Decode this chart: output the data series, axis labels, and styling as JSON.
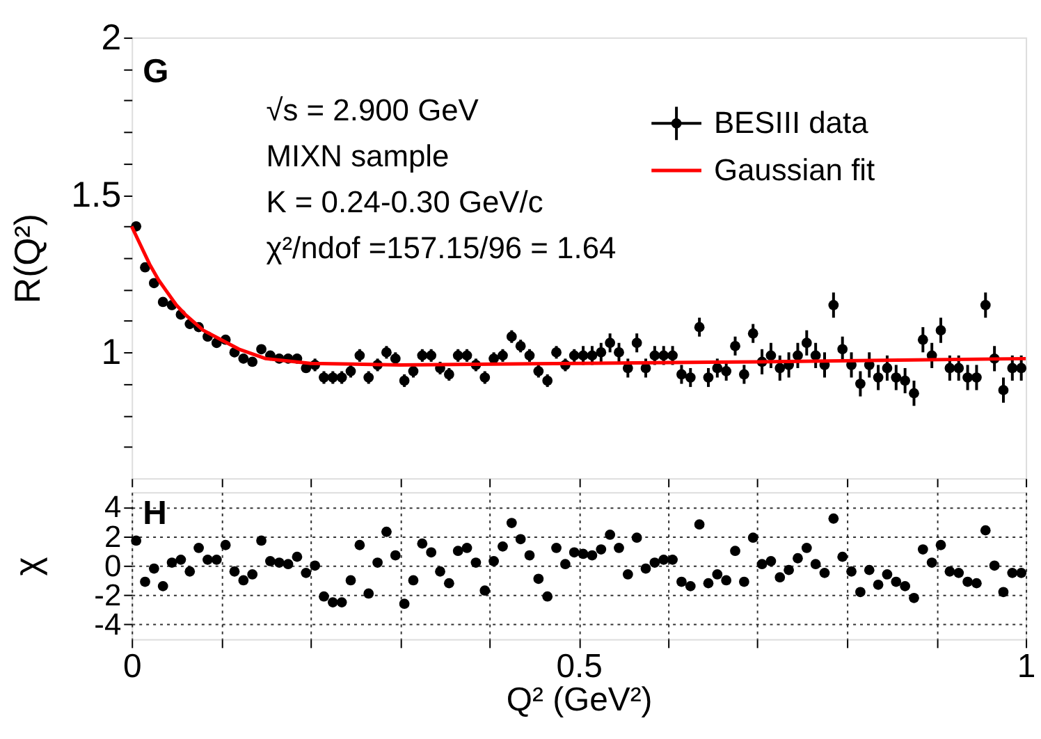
{
  "chart_data": [
    {
      "type": "scatter",
      "ylabel": "R(Q²)",
      "legend": "top right",
      "grid": false,
      "tick_labels": "y",
      "annotations": [
        "G",
        "√s = 2.900 GeV",
        "MIXN sample",
        "K = 0.24-0.30 GeV/c",
        "χ²/ndof =157.15/96 = 1.64"
      ],
      "xlim": [
        0,
        1
      ],
      "ylim": [
        0.6,
        2
      ],
      "xticks": [
        0,
        {
          "value": 0.1,
          "label": null
        },
        {
          "value": 0.2,
          "label": null
        },
        {
          "value": 0.3,
          "label": null
        },
        {
          "value": 0.4,
          "label": null
        },
        0.5,
        {
          "value": 0.6,
          "label": null
        },
        {
          "value": 0.7,
          "label": null
        },
        {
          "value": 0.8,
          "label": null
        },
        {
          "value": 0.9,
          "label": null
        },
        1
      ],
      "yticks": [
        {
          "value": 0.7,
          "label": null
        },
        {
          "value": 0.8,
          "label": null
        },
        {
          "value": 0.9,
          "label": null
        },
        1,
        {
          "value": 1.1,
          "label": null
        },
        {
          "value": 1.2,
          "label": null
        },
        {
          "value": 1.3,
          "label": null
        },
        {
          "value": 1.4,
          "label": null
        },
        1.5,
        {
          "value": 1.6,
          "label": null
        },
        {
          "value": 1.7,
          "label": null
        },
        {
          "value": 1.8,
          "label": null
        },
        {
          "value": 1.9,
          "label": null
        },
        2
      ],
      "x": [
        0.005,
        0.015,
        0.025,
        0.035,
        0.045,
        0.055,
        0.065,
        0.075,
        0.085,
        0.095,
        0.105,
        0.115,
        0.125,
        0.135,
        0.145,
        0.155,
        0.165,
        0.175,
        0.185,
        0.195,
        0.205,
        0.215,
        0.225,
        0.235,
        0.245,
        0.255,
        0.265,
        0.275,
        0.285,
        0.295,
        0.305,
        0.315,
        0.325,
        0.335,
        0.345,
        0.355,
        0.365,
        0.375,
        0.385,
        0.395,
        0.405,
        0.415,
        0.425,
        0.435,
        0.445,
        0.455,
        0.465,
        0.475,
        0.485,
        0.495,
        0.505,
        0.515,
        0.525,
        0.535,
        0.545,
        0.555,
        0.565,
        0.575,
        0.585,
        0.595,
        0.605,
        0.615,
        0.625,
        0.635,
        0.645,
        0.655,
        0.665,
        0.675,
        0.685,
        0.695,
        0.705,
        0.715,
        0.725,
        0.735,
        0.745,
        0.755,
        0.765,
        0.775,
        0.785,
        0.795,
        0.805,
        0.815,
        0.825,
        0.835,
        0.845,
        0.855,
        0.865,
        0.875,
        0.885,
        0.895,
        0.905,
        0.915,
        0.925,
        0.935,
        0.945,
        0.955,
        0.965,
        0.975,
        0.985,
        0.995
      ],
      "series": [
        {
          "name": "BESIII data",
          "type": "scatter",
          "marker": "circle",
          "color": "#000000",
          "values": [
            1.4,
            1.27,
            1.22,
            1.16,
            1.15,
            1.12,
            1.09,
            1.08,
            1.05,
            1.03,
            1.04,
            1.0,
            0.98,
            0.97,
            1.01,
            0.99,
            0.98,
            0.98,
            0.98,
            0.95,
            0.96,
            0.92,
            0.92,
            0.92,
            0.94,
            0.99,
            0.92,
            0.96,
            1.0,
            0.98,
            0.91,
            0.94,
            0.99,
            0.99,
            0.95,
            0.93,
            0.99,
            0.99,
            0.96,
            0.92,
            0.98,
            0.99,
            1.05,
            1.02,
            0.99,
            0.94,
            0.91,
            1.0,
            0.96,
            0.99,
            0.99,
            0.99,
            1.0,
            1.03,
            1.0,
            0.95,
            1.03,
            0.95,
            0.99,
            0.99,
            0.99,
            0.93,
            0.92,
            1.08,
            0.92,
            0.95,
            0.94,
            1.02,
            0.93,
            1.06,
            0.97,
            0.99,
            0.95,
            0.96,
            0.99,
            1.03,
            0.99,
            0.96,
            1.15,
            1.01,
            0.96,
            0.9,
            0.96,
            0.92,
            0.95,
            0.92,
            0.91,
            0.87,
            1.04,
            0.99,
            1.07,
            0.95,
            0.95,
            0.92,
            0.92,
            1.15,
            0.98,
            0.88,
            0.95,
            0.95
          ],
          "errors": [
            0.015,
            0.015,
            0.015,
            0.015,
            0.015,
            0.015,
            0.015,
            0.015,
            0.015,
            0.015,
            0.015,
            0.015,
            0.015,
            0.015,
            0.015,
            0.015,
            0.015,
            0.015,
            0.015,
            0.015,
            0.02,
            0.02,
            0.02,
            0.02,
            0.02,
            0.02,
            0.02,
            0.02,
            0.02,
            0.02,
            0.02,
            0.02,
            0.02,
            0.02,
            0.02,
            0.02,
            0.02,
            0.02,
            0.02,
            0.02,
            0.02,
            0.02,
            0.02,
            0.02,
            0.02,
            0.02,
            0.02,
            0.02,
            0.02,
            0.02,
            0.03,
            0.03,
            0.03,
            0.03,
            0.03,
            0.03,
            0.03,
            0.03,
            0.03,
            0.03,
            0.03,
            0.03,
            0.03,
            0.03,
            0.03,
            0.03,
            0.03,
            0.03,
            0.03,
            0.03,
            0.04,
            0.04,
            0.04,
            0.04,
            0.04,
            0.04,
            0.04,
            0.04,
            0.04,
            0.04,
            0.04,
            0.04,
            0.04,
            0.04,
            0.04,
            0.04,
            0.04,
            0.04,
            0.04,
            0.04,
            0.04,
            0.04,
            0.04,
            0.04,
            0.04,
            0.04,
            0.04,
            0.04,
            0.04,
            0.04
          ]
        },
        {
          "name": "Gaussian fit",
          "type": "line",
          "color": "#ff0000",
          "x": [
            0,
            0.01,
            0.02,
            0.03,
            0.04,
            0.05,
            0.06,
            0.08,
            0.1,
            0.12,
            0.15,
            0.2,
            0.3,
            0.5,
            0.7,
            1.0
          ],
          "values": [
            1.4,
            1.34,
            1.28,
            1.23,
            1.19,
            1.15,
            1.12,
            1.07,
            1.04,
            1.01,
            0.98,
            0.965,
            0.96,
            0.965,
            0.97,
            0.98
          ]
        }
      ]
    },
    {
      "type": "scatter",
      "ylabel": "χ",
      "xlabel": "Q² (GeV²)",
      "marker": "circle",
      "grid": true,
      "annotations": [
        "H"
      ],
      "xlim": [
        0,
        1
      ],
      "ylim": [
        -5,
        5
      ],
      "xticks": [
        0,
        {
          "value": 0.1,
          "label": null
        },
        {
          "value": 0.2,
          "label": null
        },
        {
          "value": 0.3,
          "label": null
        },
        {
          "value": 0.4,
          "label": null
        },
        0.5,
        {
          "value": 0.6,
          "label": null
        },
        {
          "value": 0.7,
          "label": null
        },
        {
          "value": 0.8,
          "label": null
        },
        {
          "value": 0.9,
          "label": null
        },
        1
      ],
      "yticks": [
        -4,
        -2,
        0,
        2,
        4
      ],
      "x": [
        0.005,
        0.015,
        0.025,
        0.035,
        0.045,
        0.055,
        0.065,
        0.075,
        0.085,
        0.095,
        0.105,
        0.115,
        0.125,
        0.135,
        0.145,
        0.155,
        0.165,
        0.175,
        0.185,
        0.195,
        0.205,
        0.215,
        0.225,
        0.235,
        0.245,
        0.255,
        0.265,
        0.275,
        0.285,
        0.295,
        0.305,
        0.315,
        0.325,
        0.335,
        0.345,
        0.355,
        0.365,
        0.375,
        0.385,
        0.395,
        0.405,
        0.415,
        0.425,
        0.435,
        0.445,
        0.455,
        0.465,
        0.475,
        0.485,
        0.495,
        0.505,
        0.515,
        0.525,
        0.535,
        0.545,
        0.555,
        0.565,
        0.575,
        0.585,
        0.595,
        0.605,
        0.615,
        0.625,
        0.635,
        0.645,
        0.655,
        0.665,
        0.675,
        0.685,
        0.695,
        0.705,
        0.715,
        0.725,
        0.735,
        0.745,
        0.755,
        0.765,
        0.775,
        0.785,
        0.795,
        0.805,
        0.815,
        0.825,
        0.835,
        0.845,
        0.855,
        0.865,
        0.875,
        0.885,
        0.895,
        0.905,
        0.915,
        0.925,
        0.935,
        0.945,
        0.955,
        0.965,
        0.975,
        0.985,
        0.995
      ],
      "series": [
        {
          "color": "#000000",
          "values": [
            1.7,
            -1.1,
            -0.2,
            -1.4,
            0.2,
            0.4,
            -0.4,
            1.2,
            0.4,
            0.4,
            1.4,
            -0.4,
            -1.0,
            -0.6,
            1.7,
            0.3,
            0.2,
            0.1,
            0.6,
            -0.5,
            0.0,
            -2.1,
            -2.5,
            -2.5,
            -1.0,
            1.4,
            -1.9,
            0.2,
            2.3,
            0.7,
            -2.6,
            -1.0,
            1.5,
            0.9,
            -0.4,
            -1.2,
            1.0,
            1.2,
            0.2,
            -1.7,
            0.3,
            1.3,
            2.9,
            1.8,
            0.7,
            -0.9,
            -2.1,
            1.2,
            0.1,
            0.9,
            0.8,
            0.7,
            1.1,
            2.1,
            1.2,
            -0.6,
            1.9,
            -0.2,
            0.2,
            0.4,
            0.4,
            -1.1,
            -1.4,
            2.8,
            -1.2,
            -0.6,
            -1.0,
            1.0,
            -1.1,
            1.9,
            0.1,
            0.3,
            -0.8,
            -0.3,
            0.5,
            1.2,
            0.1,
            -0.5,
            3.2,
            0.6,
            -0.4,
            -1.8,
            -0.3,
            -1.3,
            -0.6,
            -1.1,
            -1.4,
            -2.2,
            1.1,
            0.2,
            1.4,
            -0.4,
            -0.5,
            -1.1,
            -1.2,
            2.4,
            0.0,
            -1.8,
            -0.5,
            -0.5
          ]
        }
      ]
    }
  ]
}
